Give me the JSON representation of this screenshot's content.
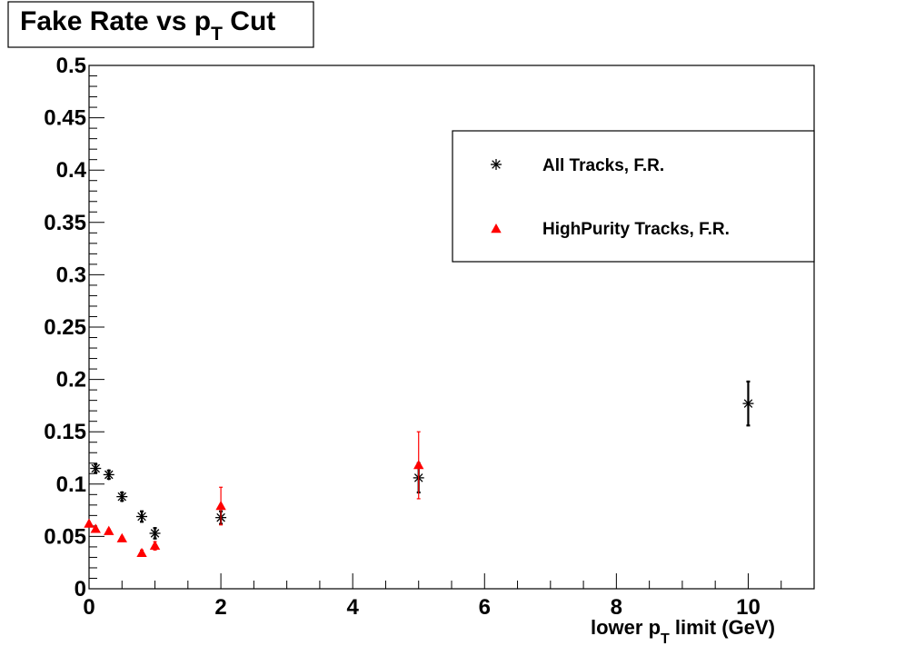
{
  "chart_data": {
    "type": "scatter",
    "title": {
      "main": "Fake Rate vs p",
      "sub": "T",
      "after": " Cut"
    },
    "xlabel": {
      "main": "lower p",
      "sub": "T",
      "after": " limit (GeV)"
    },
    "ylabel": "",
    "xlim": [
      0,
      11
    ],
    "ylim": [
      0,
      0.5
    ],
    "x_ticks": [
      "0",
      "2",
      "4",
      "6",
      "8",
      "10"
    ],
    "y_ticks": [
      "0",
      "0.05",
      "0.1",
      "0.15",
      "0.2",
      "0.25",
      "0.3",
      "0.35",
      "0.4",
      "0.45",
      "0.5"
    ],
    "grid": false,
    "legend_position": "top-right",
    "series": [
      {
        "name": "All Tracks, F.R.",
        "marker": "asterisk",
        "color": "#000000",
        "points": [
          {
            "x": 0.1,
            "y": 0.115,
            "err": 0.004
          },
          {
            "x": 0.3,
            "y": 0.109,
            "err": 0.004
          },
          {
            "x": 0.5,
            "y": 0.088,
            "err": 0.004
          },
          {
            "x": 0.8,
            "y": 0.069,
            "err": 0.005
          },
          {
            "x": 1.0,
            "y": 0.053,
            "err": 0.005
          },
          {
            "x": 2.0,
            "y": 0.068,
            "err": 0.006
          },
          {
            "x": 5.0,
            "y": 0.106,
            "err": 0.014
          },
          {
            "x": 10.0,
            "y": 0.177,
            "err": 0.021
          }
        ]
      },
      {
        "name": "HighPurity Tracks, F.R.",
        "marker": "triangle",
        "color": "#ff0000",
        "points": [
          {
            "x": 0.0,
            "y": 0.062,
            "err": 0.002
          },
          {
            "x": 0.1,
            "y": 0.057,
            "err": 0.002
          },
          {
            "x": 0.3,
            "y": 0.055,
            "err": 0.002
          },
          {
            "x": 0.5,
            "y": 0.048,
            "err": 0.002
          },
          {
            "x": 0.8,
            "y": 0.034,
            "err": 0.003
          },
          {
            "x": 1.0,
            "y": 0.041,
            "err": 0.004
          },
          {
            "x": 2.0,
            "y": 0.079,
            "err": 0.018
          },
          {
            "x": 5.0,
            "y": 0.118,
            "err": 0.032
          }
        ]
      }
    ]
  }
}
